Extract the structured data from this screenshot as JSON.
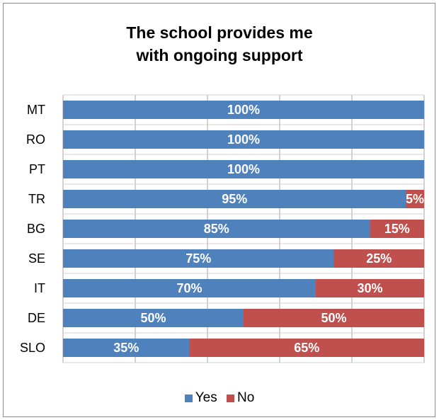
{
  "chart_data": {
    "type": "bar",
    "orientation": "horizontal",
    "stacked": true,
    "title": "The school provides me with ongoing support",
    "title_lines": [
      "The school provides me",
      "with ongoing support"
    ],
    "categories": [
      "MT",
      "RO",
      "PT",
      "TR",
      "BG",
      "SE",
      "IT",
      "DE",
      "SLO"
    ],
    "series": [
      {
        "name": "Yes",
        "color": "#4f81bd",
        "values": [
          100,
          100,
          100,
          95,
          85,
          75,
          70,
          50,
          35
        ]
      },
      {
        "name": "No",
        "color": "#c0504d",
        "values": [
          0,
          0,
          0,
          5,
          15,
          25,
          30,
          50,
          65
        ]
      }
    ],
    "value_labels": {
      "Yes": [
        "100%",
        "100%",
        "100%",
        "95%",
        "85%",
        "75%",
        "70%",
        "50%",
        "35%"
      ],
      "No": [
        "",
        "",
        "",
        "5%",
        "15%",
        "25%",
        "30%",
        "50%",
        "65%"
      ]
    },
    "xlim": [
      0,
      100
    ],
    "gridlines": "vertical",
    "legend_position": "bottom"
  }
}
